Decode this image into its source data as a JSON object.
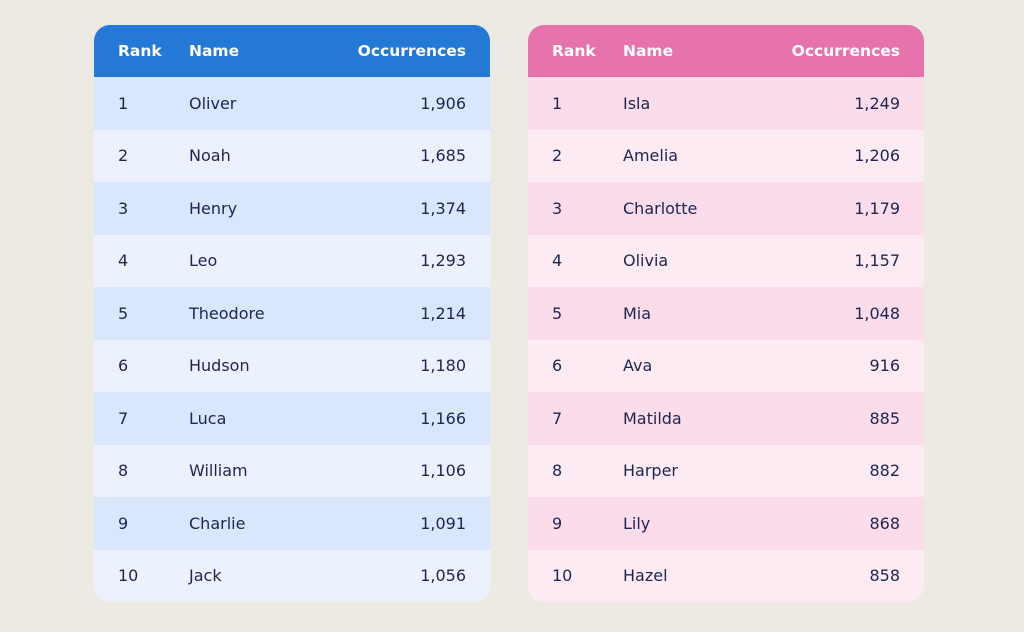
{
  "headers": {
    "rank": "Rank",
    "name": "Name",
    "occurrences": "Occurrences"
  },
  "colors": {
    "boys_header": "#2478d6",
    "girls_header": "#e673ab"
  },
  "boys": [
    {
      "rank": "1",
      "name": "Oliver",
      "occurrences": "1,906"
    },
    {
      "rank": "2",
      "name": "Noah",
      "occurrences": "1,685"
    },
    {
      "rank": "3",
      "name": "Henry",
      "occurrences": "1,374"
    },
    {
      "rank": "4",
      "name": "Leo",
      "occurrences": "1,293"
    },
    {
      "rank": "5",
      "name": "Theodore",
      "occurrences": "1,214"
    },
    {
      "rank": "6",
      "name": "Hudson",
      "occurrences": "1,180"
    },
    {
      "rank": "7",
      "name": "Luca",
      "occurrences": "1,166"
    },
    {
      "rank": "8",
      "name": "William",
      "occurrences": "1,106"
    },
    {
      "rank": "9",
      "name": "Charlie",
      "occurrences": "1,091"
    },
    {
      "rank": "10",
      "name": "Jack",
      "occurrences": "1,056"
    }
  ],
  "girls": [
    {
      "rank": "1",
      "name": "Isla",
      "occurrences": "1,249"
    },
    {
      "rank": "2",
      "name": "Amelia",
      "occurrences": "1,206"
    },
    {
      "rank": "3",
      "name": "Charlotte",
      "occurrences": "1,179"
    },
    {
      "rank": "4",
      "name": "Olivia",
      "occurrences": "1,157"
    },
    {
      "rank": "5",
      "name": "Mia",
      "occurrences": "1,048"
    },
    {
      "rank": "6",
      "name": "Ava",
      "occurrences": "916"
    },
    {
      "rank": "7",
      "name": "Matilda",
      "occurrences": "885"
    },
    {
      "rank": "8",
      "name": "Harper",
      "occurrences": "882"
    },
    {
      "rank": "9",
      "name": "Lily",
      "occurrences": "868"
    },
    {
      "rank": "10",
      "name": "Hazel",
      "occurrences": "858"
    }
  ]
}
